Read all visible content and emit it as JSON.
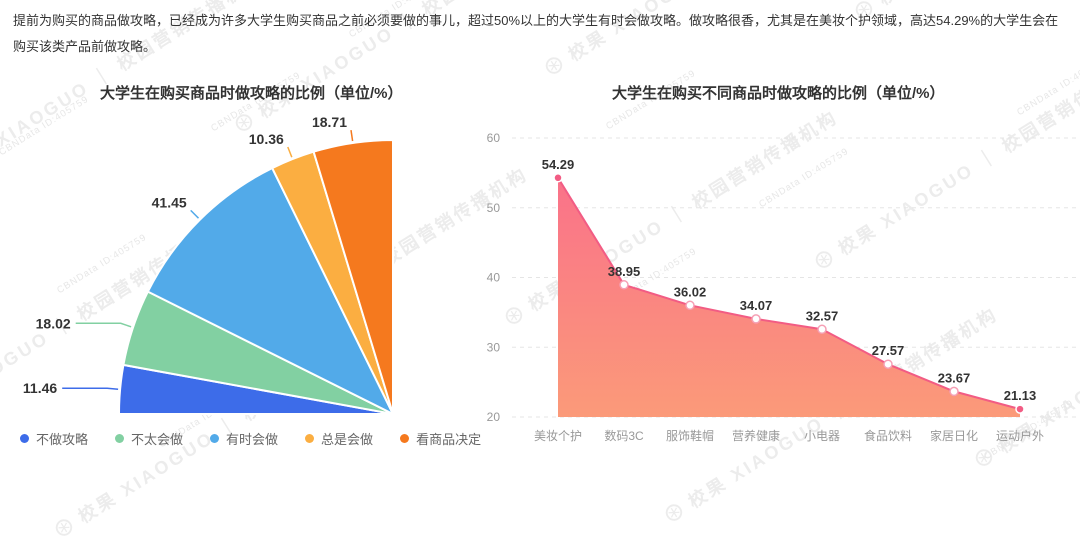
{
  "intro": {
    "text": "提前为购买的商品做攻略，已经成为许多大学生购买商品之前必须要做的事儿，超过50%以上的大学生有时会做攻略。做攻略很香，尤其是在美妆个护领域，高达54.29%的大学生会在购买该类产品前做攻略。"
  },
  "watermark": {
    "brand": "校果 XIAOGUO ｜ 校园营销传播机构",
    "logo_glyph": "⊛",
    "id_text": "CBNData ID:405759"
  },
  "chart_data": [
    {
      "type": "pie",
      "shape": "quarter-fan",
      "title": "大学生在购买商品时做攻略的比例（单位/%）",
      "unit": "%",
      "legend_position": "bottom",
      "slices": [
        {
          "label": "不做攻略",
          "value": 11.46,
          "color": "#3D6CE9"
        },
        {
          "label": "不太会做",
          "value": 18.02,
          "color": "#82D0A2"
        },
        {
          "label": "有时会做",
          "value": 41.45,
          "color": "#52AAE9"
        },
        {
          "label": "总是会做",
          "value": 10.36,
          "color": "#FBAE41"
        },
        {
          "label": "看商品决定",
          "value": 18.71,
          "color": "#F5791E"
        }
      ]
    },
    {
      "type": "area",
      "title": "大学生在购买不同商品时做攻略的比例（单位/%）",
      "unit": "%",
      "categories": [
        "美妆个护",
        "数码3C",
        "服饰鞋帽",
        "营养健康",
        "小电器",
        "食品饮料",
        "家居日化",
        "运动户外"
      ],
      "values": [
        54.29,
        38.95,
        36.02,
        34.07,
        32.57,
        27.57,
        23.67,
        21.13
      ],
      "ylim": [
        20,
        60
      ],
      "yticks": [
        20,
        30,
        40,
        50,
        60
      ],
      "grid": "dashed-horizontal",
      "colors": {
        "line": "#F25C84",
        "gradient_top": "#F96B8C",
        "gradient_bottom": "#FB9A79",
        "point_fill": "#F25C84",
        "grid_line": "#E5E5E5",
        "axis_text": "#999999",
        "value_label": "#333333"
      }
    }
  ]
}
